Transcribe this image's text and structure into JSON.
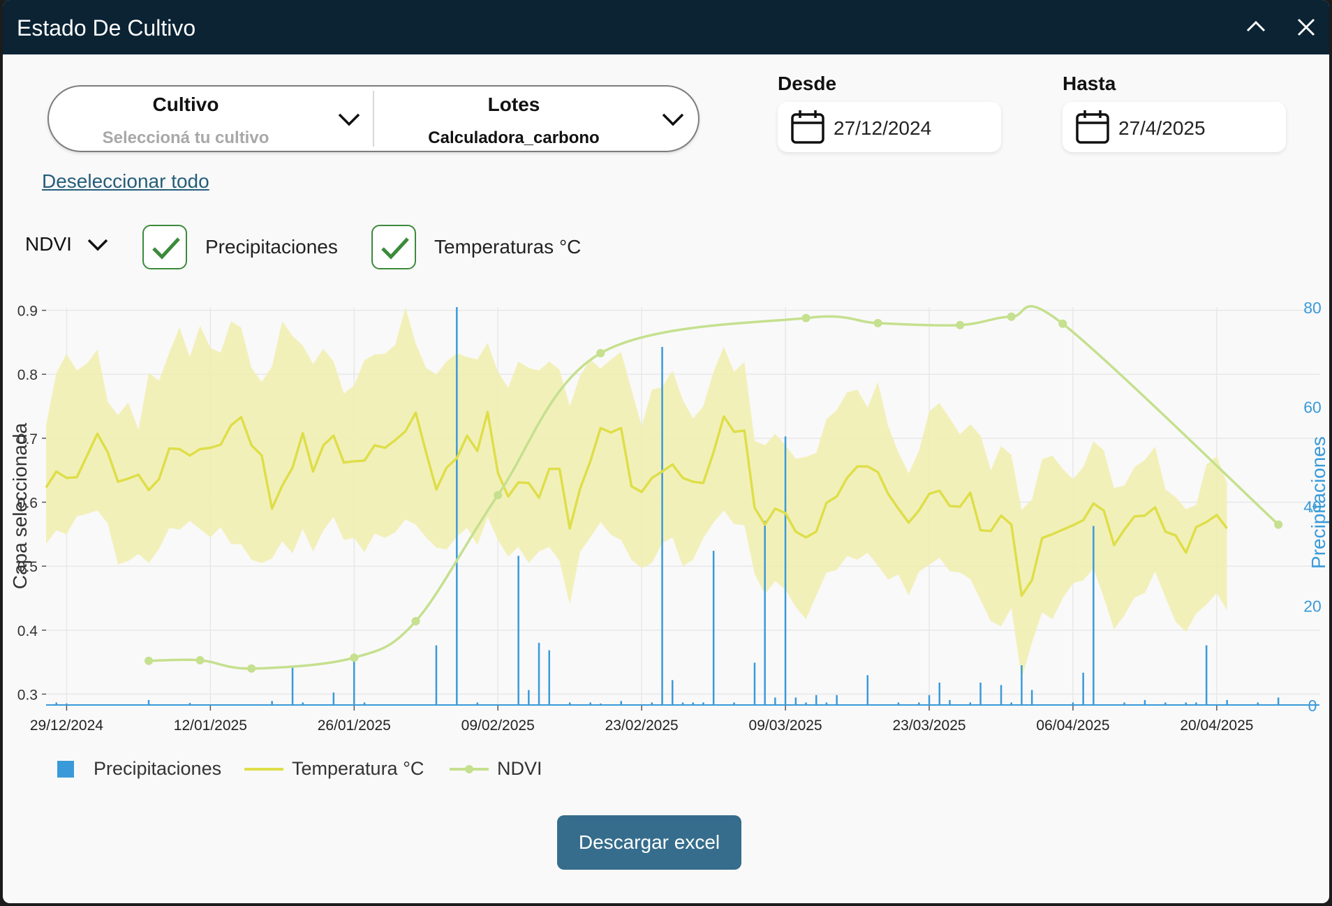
{
  "window": {
    "title": "Estado De Cultivo"
  },
  "filters": {
    "cultivo": {
      "label": "Cultivo",
      "value": "Seleccioná tu cultivo"
    },
    "lotes": {
      "label": "Lotes",
      "value": "Calculadora_carbono"
    },
    "desde": {
      "label": "Desde",
      "value": "27/12/2024"
    },
    "hasta": {
      "label": "Hasta",
      "value": "27/4/2025"
    },
    "deselect_label": "Deseleccionar todo"
  },
  "toggles": {
    "layer_select": "NDVI",
    "precip_label": "Precipitaciones",
    "precip_checked": true,
    "temp_label": "Temperaturas °C",
    "temp_checked": true
  },
  "colors": {
    "header": "#0b2333",
    "accent": "#366d8c",
    "precip": "#3a9ad9",
    "temp": "#dede4a",
    "temp_band": "#f1eeae",
    "ndvi": "#c5e08e",
    "check": "#3b8a3b"
  },
  "chart_data": {
    "type": "line",
    "ylabel_left": "Capa seleccionada",
    "ylabel_right": "Precipitaciones",
    "y_left_ticks": [
      "0.3",
      "0.4",
      "0.5",
      "0.6",
      "0.7",
      "0.8",
      "0.9"
    ],
    "y_right_ticks": [
      "0",
      "20",
      "40",
      "60",
      "80"
    ],
    "ylim_left": [
      0.283,
      0.905
    ],
    "ylim_right": [
      0,
      80
    ],
    "xlim": [
      "2024-12-27",
      "2025-04-30"
    ],
    "x_ticks": [
      "29/12/2024",
      "12/01/2025",
      "26/01/2025",
      "09/02/2025",
      "23/02/2025",
      "09/03/2025",
      "23/03/2025",
      "06/04/2025",
      "20/04/2025"
    ],
    "grid": true,
    "legend": [
      {
        "name": "Precipitaciones",
        "kind": "bar"
      },
      {
        "name": "Temperatura °C",
        "kind": "line"
      },
      {
        "name": "NDVI",
        "kind": "line-marker"
      }
    ],
    "legend_position": "bottom-left",
    "series": [
      {
        "name": "NDVI",
        "axis": "left",
        "x": [
          "2025-01-06",
          "2025-01-11",
          "2025-01-16",
          "2025-01-26",
          "2025-02-01",
          "2025-02-09",
          "2025-02-19",
          "2025-03-11",
          "2025-03-18",
          "2025-03-26",
          "2025-03-31",
          "2025-04-05",
          "2025-04-26"
        ],
        "y": [
          0.352,
          0.353,
          0.34,
          0.357,
          0.414,
          0.611,
          0.833,
          0.888,
          0.88,
          0.877,
          0.89,
          0.879,
          0.565
        ]
      },
      {
        "name": "Temperatura °C",
        "axis": "left",
        "start": "2024-12-27",
        "y": [
          0.623,
          0.648,
          0.638,
          0.639,
          0.673,
          0.707,
          0.678,
          0.632,
          0.637,
          0.643,
          0.619,
          0.636,
          0.684,
          0.683,
          0.673,
          0.683,
          0.685,
          0.69,
          0.72,
          0.733,
          0.689,
          0.673,
          0.59,
          0.626,
          0.654,
          0.708,
          0.648,
          0.689,
          0.704,
          0.662,
          0.664,
          0.665,
          0.689,
          0.685,
          0.697,
          0.711,
          0.74,
          0.678,
          0.62,
          0.654,
          0.669,
          0.704,
          0.68,
          0.741,
          0.646,
          0.609,
          0.631,
          0.63,
          0.607,
          0.652,
          0.652,
          0.559,
          0.621,
          0.664,
          0.716,
          0.709,
          0.716,
          0.625,
          0.616,
          0.638,
          0.648,
          0.659,
          0.638,
          0.632,
          0.63,
          0.678,
          0.734,
          0.71,
          0.712,
          0.591,
          0.565,
          0.59,
          0.583,
          0.554,
          0.545,
          0.554,
          0.599,
          0.609,
          0.638,
          0.656,
          0.656,
          0.647,
          0.613,
          0.59,
          0.568,
          0.587,
          0.613,
          0.618,
          0.594,
          0.593,
          0.615,
          0.556,
          0.555,
          0.579,
          0.565,
          0.454,
          0.478,
          0.544,
          0.55,
          0.557,
          0.564,
          0.572,
          0.598,
          0.587,
          0.533,
          0.557,
          0.578,
          0.579,
          0.592,
          0.554,
          0.548,
          0.521,
          0.561,
          0.569,
          0.58,
          0.559
        ]
      }
    ],
    "temp_band": {
      "name": "Temperatura °C (rango)",
      "axis": "left",
      "start": "2024-12-27",
      "upper": [
        0.72,
        0.802,
        0.832,
        0.806,
        0.817,
        0.839,
        0.757,
        0.736,
        0.756,
        0.713,
        0.802,
        0.79,
        0.834,
        0.873,
        0.827,
        0.876,
        0.841,
        0.834,
        0.883,
        0.873,
        0.81,
        0.788,
        0.812,
        0.883,
        0.86,
        0.845,
        0.816,
        0.84,
        0.82,
        0.77,
        0.783,
        0.822,
        0.831,
        0.832,
        0.846,
        0.905,
        0.848,
        0.81,
        0.8,
        0.82,
        0.833,
        0.827,
        0.823,
        0.849,
        0.804,
        0.779,
        0.82,
        0.81,
        0.806,
        0.82,
        0.807,
        0.75,
        0.798,
        0.823,
        0.809,
        0.823,
        0.835,
        0.776,
        0.719,
        0.776,
        0.78,
        0.806,
        0.76,
        0.731,
        0.75,
        0.804,
        0.843,
        0.804,
        0.819,
        0.696,
        0.689,
        0.707,
        0.689,
        0.668,
        0.671,
        0.677,
        0.73,
        0.744,
        0.772,
        0.776,
        0.748,
        0.788,
        0.719,
        0.678,
        0.645,
        0.68,
        0.742,
        0.755,
        0.731,
        0.706,
        0.722,
        0.704,
        0.65,
        0.688,
        0.674,
        0.588,
        0.604,
        0.667,
        0.673,
        0.652,
        0.636,
        0.655,
        0.695,
        0.681,
        0.622,
        0.626,
        0.655,
        0.666,
        0.687,
        0.62,
        0.608,
        0.589,
        0.596,
        0.659,
        0.672,
        0.63
      ],
      "lower": [
        0.535,
        0.556,
        0.55,
        0.578,
        0.582,
        0.587,
        0.567,
        0.503,
        0.508,
        0.519,
        0.505,
        0.527,
        0.56,
        0.557,
        0.571,
        0.558,
        0.545,
        0.561,
        0.535,
        0.534,
        0.51,
        0.505,
        0.512,
        0.539,
        0.52,
        0.558,
        0.523,
        0.556,
        0.577,
        0.541,
        0.544,
        0.522,
        0.551,
        0.544,
        0.553,
        0.573,
        0.565,
        0.545,
        0.529,
        0.526,
        0.546,
        0.56,
        0.533,
        0.577,
        0.541,
        0.515,
        0.53,
        0.505,
        0.523,
        0.53,
        0.508,
        0.44,
        0.522,
        0.545,
        0.569,
        0.549,
        0.541,
        0.51,
        0.497,
        0.505,
        0.536,
        0.545,
        0.5,
        0.51,
        0.544,
        0.568,
        0.587,
        0.566,
        0.564,
        0.488,
        0.456,
        0.477,
        0.463,
        0.436,
        0.417,
        0.454,
        0.49,
        0.494,
        0.516,
        0.51,
        0.521,
        0.501,
        0.479,
        0.487,
        0.454,
        0.491,
        0.502,
        0.513,
        0.492,
        0.49,
        0.48,
        0.447,
        0.414,
        0.406,
        0.435,
        0.324,
        0.38,
        0.428,
        0.417,
        0.45,
        0.473,
        0.478,
        0.496,
        0.451,
        0.401,
        0.423,
        0.451,
        0.458,
        0.492,
        0.451,
        0.413,
        0.397,
        0.426,
        0.44,
        0.458,
        0.431
      ]
    },
    "precipitation": {
      "name": "Precipitaciones",
      "axis": "right",
      "kind": "bar",
      "x": [
        "2024-12-28",
        "2024-12-29",
        "2025-01-06",
        "2025-01-10",
        "2025-01-18",
        "2025-01-20",
        "2025-01-21",
        "2025-01-24",
        "2025-01-26",
        "2025-01-27",
        "2025-02-03",
        "2025-02-05",
        "2025-02-07",
        "2025-02-11",
        "2025-02-12",
        "2025-02-13",
        "2025-02-14",
        "2025-02-16",
        "2025-02-18",
        "2025-02-19",
        "2025-02-21",
        "2025-02-24",
        "2025-02-25",
        "2025-02-26",
        "2025-02-27",
        "2025-02-28",
        "2025-03-01",
        "2025-03-02",
        "2025-03-04",
        "2025-03-06",
        "2025-03-07",
        "2025-03-08",
        "2025-03-09",
        "2025-03-10",
        "2025-03-11",
        "2025-03-12",
        "2025-03-13",
        "2025-03-14",
        "2025-03-17",
        "2025-03-20",
        "2025-03-22",
        "2025-03-23",
        "2025-03-24",
        "2025-03-25",
        "2025-03-27",
        "2025-03-28",
        "2025-03-30",
        "2025-03-31",
        "2025-04-01",
        "2025-04-02",
        "2025-04-06",
        "2025-04-07",
        "2025-04-08",
        "2025-04-11",
        "2025-04-13",
        "2025-04-15",
        "2025-04-17",
        "2025-04-18",
        "2025-04-19",
        "2025-04-21",
        "2025-04-24",
        "2025-04-26"
      ],
      "y": [
        0.5,
        0.3,
        1.0,
        0.4,
        0.8,
        7.5,
        0.5,
        2.5,
        9.0,
        0.5,
        12.0,
        80.0,
        0.5,
        30.0,
        3.0,
        12.5,
        11.0,
        0.5,
        0.5,
        0.3,
        0.8,
        0.5,
        72.0,
        5.0,
        0.5,
        0.5,
        0.5,
        31.0,
        0.5,
        8.5,
        37.0,
        1.5,
        54.0,
        1.5,
        0.5,
        2.0,
        0.5,
        2.0,
        6.0,
        0.5,
        0.5,
        2.0,
        4.5,
        1.0,
        0.5,
        4.5,
        4.0,
        0.5,
        8.0,
        3.0,
        0.5,
        6.5,
        36.0,
        0.5,
        1.0,
        0.5,
        0.5,
        0.5,
        12.0,
        1.0,
        0.5,
        1.5
      ]
    }
  },
  "legend": {
    "precip": "Precipitaciones",
    "temp": "Temperatura °C",
    "ndvi": "NDVI"
  },
  "actions": {
    "download_label": "Descargar excel"
  }
}
